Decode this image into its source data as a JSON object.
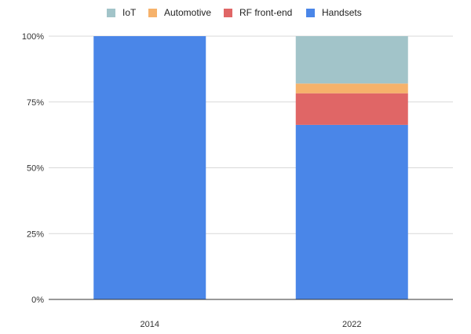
{
  "chart_data": {
    "type": "bar",
    "stacked": true,
    "normalized": true,
    "categories": [
      "2014",
      "2022"
    ],
    "series": [
      {
        "name": "Handsets",
        "color": "#4a86e8",
        "values": [
          100,
          66.3
        ]
      },
      {
        "name": "RF front-end",
        "color": "#e06666",
        "values": [
          0,
          12.0
        ]
      },
      {
        "name": "Automotive",
        "color": "#f6b26b",
        "values": [
          0,
          3.7
        ]
      },
      {
        "name": "IoT",
        "color": "#a2c4c9",
        "values": [
          0,
          18.0
        ]
      }
    ],
    "legend_order": [
      "IoT",
      "Automotive",
      "RF front-end",
      "Handsets"
    ],
    "y_ticks": [
      "0%",
      "25%",
      "50%",
      "75%",
      "100%"
    ],
    "ylim": [
      0,
      100
    ],
    "grid": true,
    "legend_position": "top",
    "title": "",
    "xlabel": "",
    "ylabel": ""
  }
}
